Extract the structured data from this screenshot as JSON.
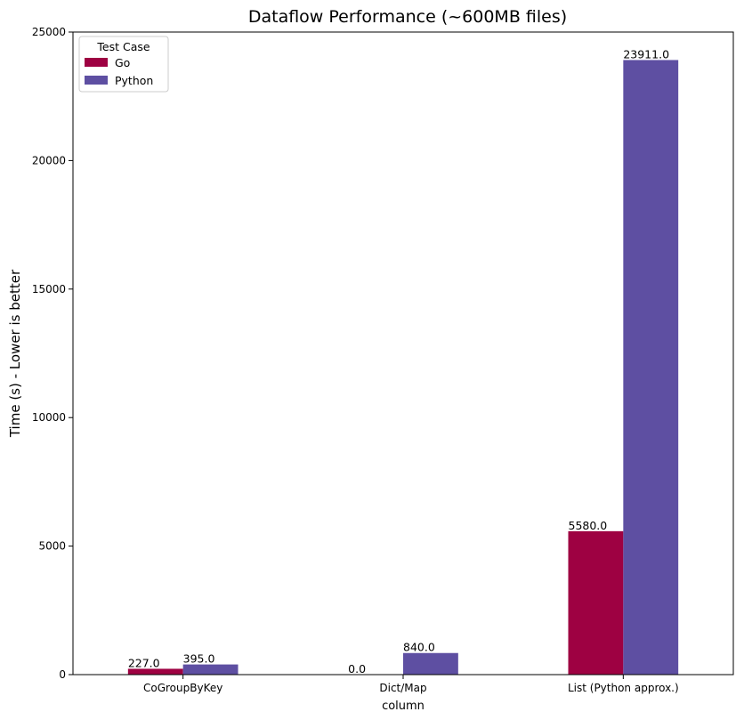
{
  "chart_data": {
    "type": "bar",
    "title": "Dataflow Performance (~600MB files)",
    "xlabel": "column",
    "ylabel": "Time (s) - Lower is better",
    "categories": [
      "CoGroupByKey",
      "Dict/Map",
      "List (Python approx.)"
    ],
    "series": [
      {
        "name": "Go",
        "values": [
          227.0,
          0.0,
          5580.0
        ],
        "labels": [
          "227.0",
          "0.0",
          "5580.0"
        ],
        "color": "#9e0142"
      },
      {
        "name": "Python",
        "values": [
          395.0,
          840.0,
          23911.0
        ],
        "labels": [
          "395.0",
          "840.0",
          "23911.0"
        ],
        "color": "#5e4fa2"
      }
    ],
    "ylim": [
      0,
      25000
    ],
    "yticks": [
      0,
      5000,
      10000,
      15000,
      20000,
      25000
    ],
    "ytick_labels": [
      "0",
      "5000",
      "10000",
      "15000",
      "20000",
      "25000"
    ],
    "grid": false,
    "legend": {
      "title": "Test Case",
      "placement": "top-left"
    }
  }
}
